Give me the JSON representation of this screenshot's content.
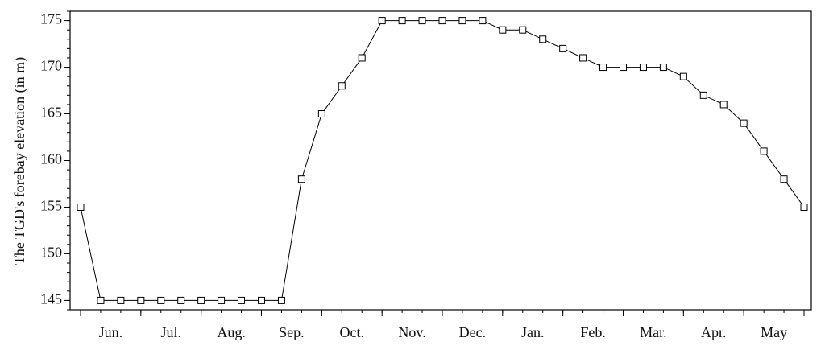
{
  "chart_data": {
    "type": "line",
    "y_label": "The TGD's forebay elevation (in m)",
    "months": [
      "Jun.",
      "Jul.",
      "Aug.",
      "Sep.",
      "Oct.",
      "Nov.",
      "Dec.",
      "Jan.",
      "Feb.",
      "Mar.",
      "Apr.",
      "May"
    ],
    "values": [
      155,
      145,
      145,
      145,
      145,
      145,
      145,
      145,
      145,
      145,
      145,
      158,
      165,
      168,
      171,
      175,
      175,
      175,
      175,
      175,
      175,
      174,
      174,
      173,
      172,
      171,
      170,
      170,
      170,
      170,
      169,
      167,
      166,
      164,
      161,
      158,
      155
    ],
    "color": "#000000",
    "ylim": [
      144,
      176
    ],
    "yticks": [
      145,
      150,
      155,
      160,
      165,
      170,
      175
    ]
  }
}
